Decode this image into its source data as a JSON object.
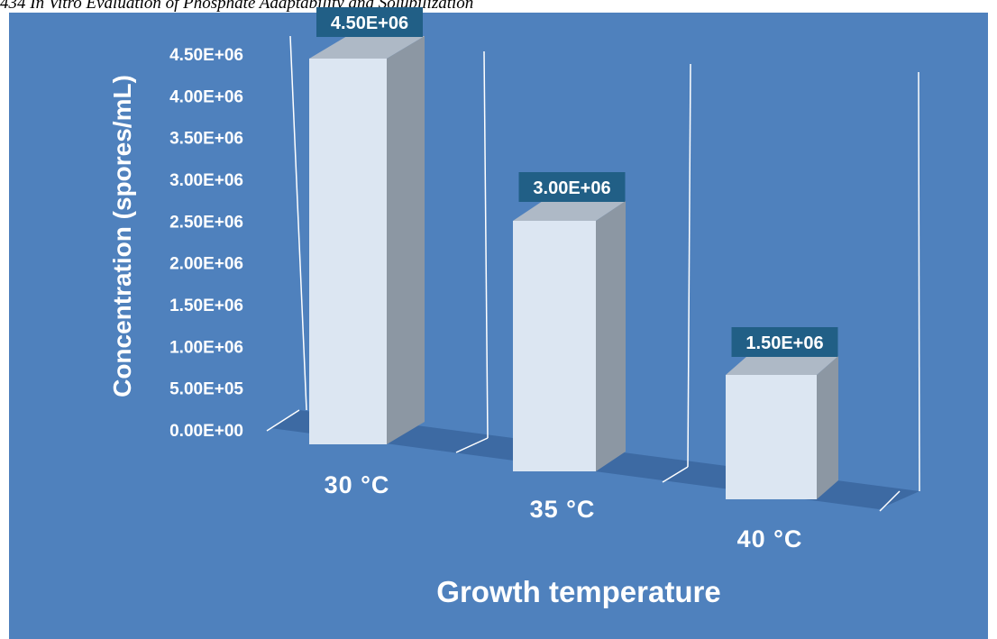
{
  "header": {
    "running_head": "434 In Vitro Evaluation of Phosphate Adaptability and Solubilization"
  },
  "chart_data": {
    "type": "bar",
    "categories": [
      "30  °C",
      "35  °C",
      "40  °C"
    ],
    "values": [
      4500000,
      3000000,
      1500000
    ],
    "data_labels": [
      "4.50E+06",
      "3.00E+06",
      "1.50E+06"
    ],
    "yticks": [
      "0.00E+00",
      "5.00E+05",
      "1.00E+06",
      "1.50E+06",
      "2.00E+06",
      "2.50E+06",
      "3.00E+06",
      "3.50E+06",
      "4.00E+06",
      "4.50E+06"
    ],
    "xlabel": "Growth temperature",
    "ylabel": "Concentration (spores/mL)",
    "ylim": [
      0,
      4500000
    ],
    "grid": false,
    "legend": "none",
    "colors": {
      "background": "#4f81bd",
      "floor": "#3d6aa3",
      "bar_front": "#dce6f2",
      "bar_top": "#aeb9c6",
      "bar_side": "#8c97a3",
      "label_box": "#215f86",
      "axis_lines": "#ffffff"
    }
  }
}
